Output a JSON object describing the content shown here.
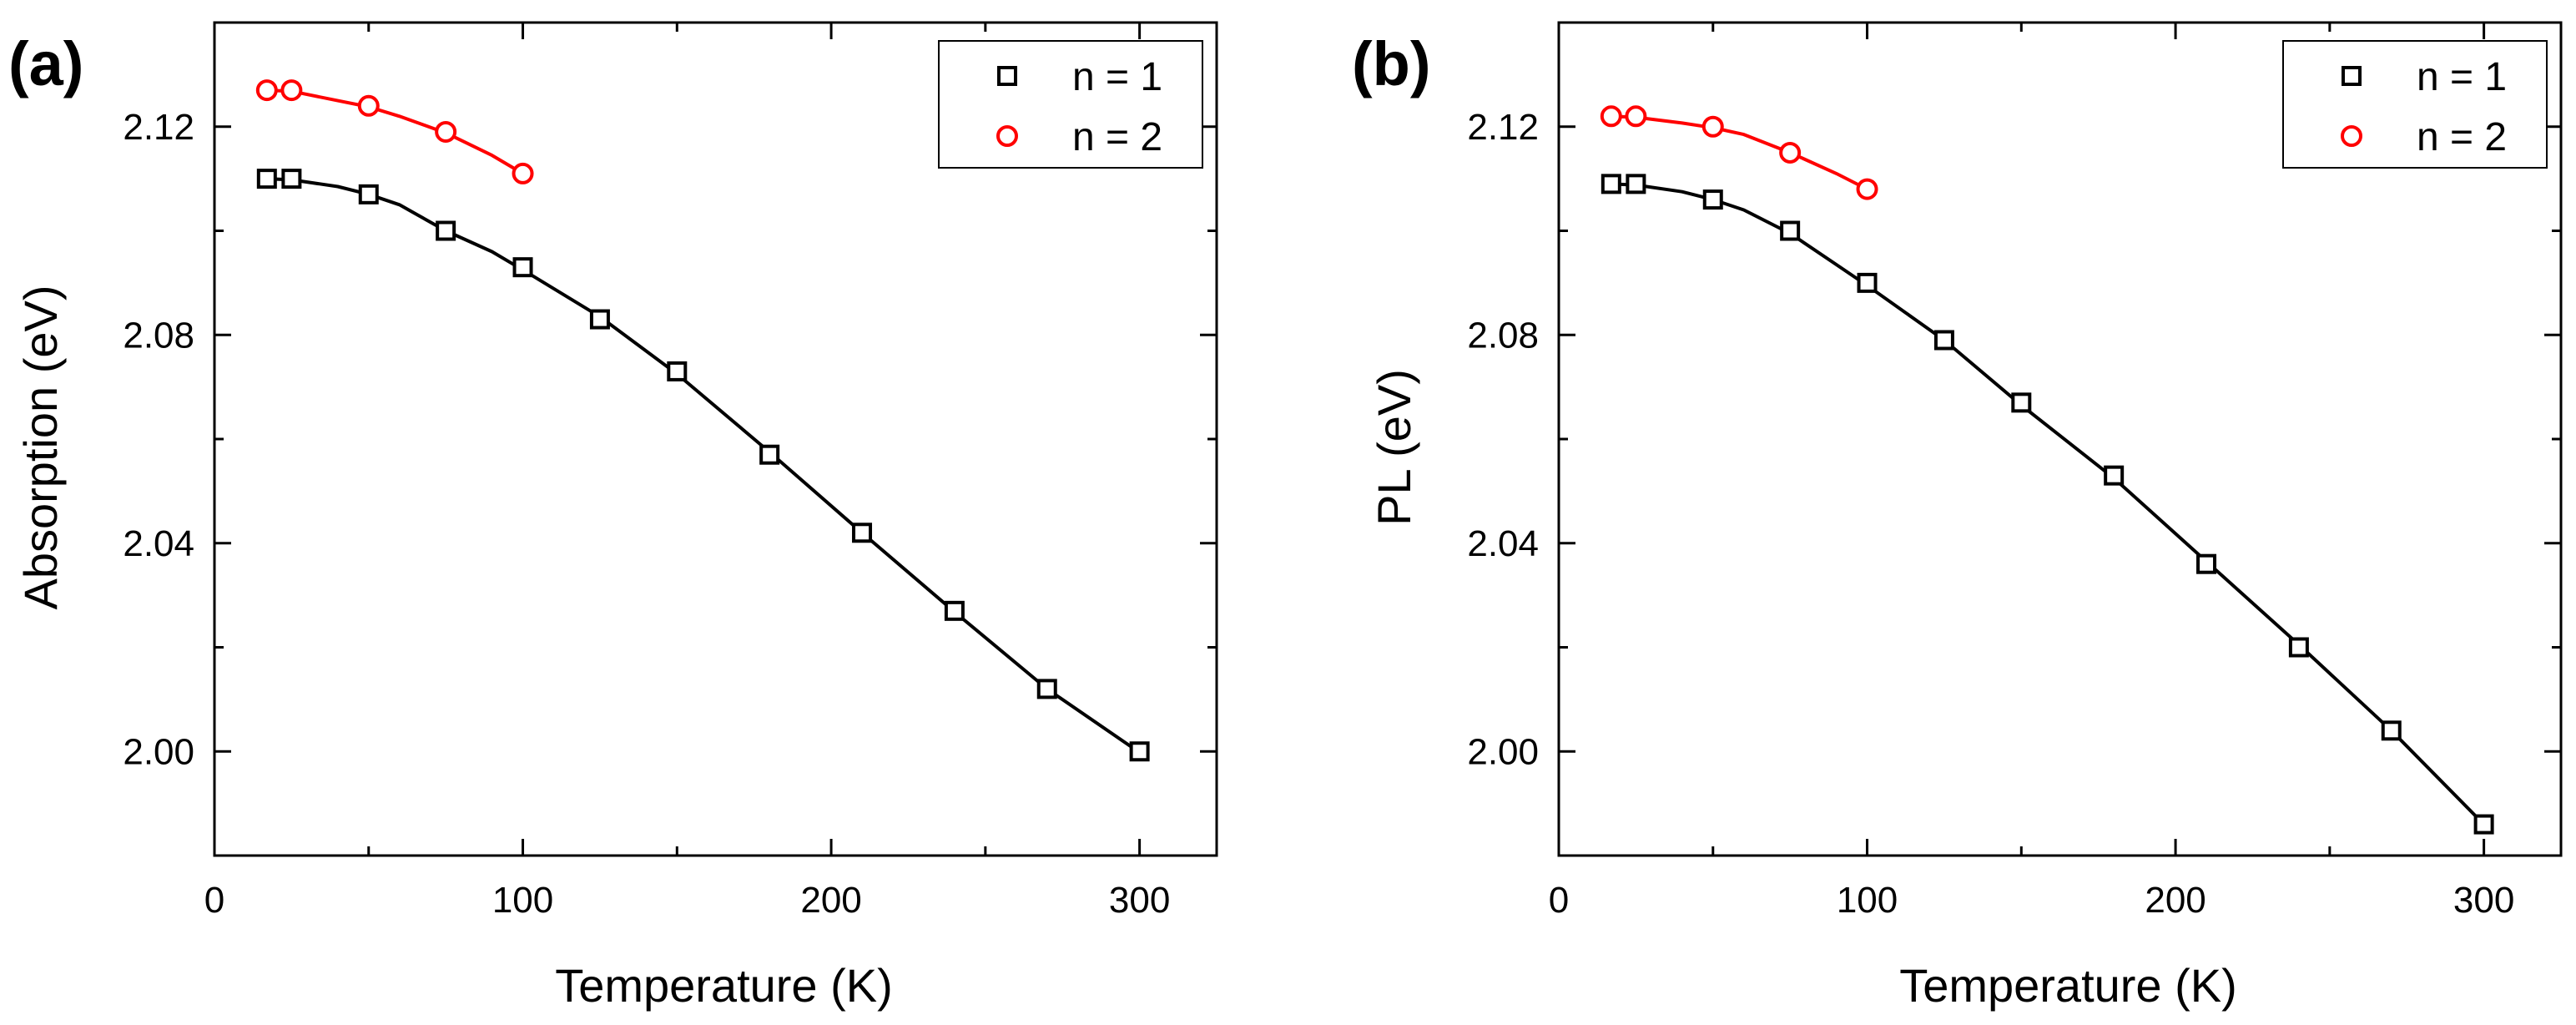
{
  "chart_data": [
    {
      "type": "scatter",
      "panel_label": "(a)",
      "title": "",
      "xlabel": "Temperature (K)",
      "ylabel": "Absorption (eV)",
      "xlim": [
        0,
        325
      ],
      "ylim": [
        1.98,
        2.14
      ],
      "xticks": [
        0,
        100,
        200,
        300
      ],
      "xtick_labels": [
        "0",
        "100",
        "200",
        "300"
      ],
      "yticks": [
        2.0,
        2.04,
        2.08,
        2.12
      ],
      "ytick_labels": [
        "2.00",
        "2.04",
        "2.08",
        "2.12"
      ],
      "grid": false,
      "legend_position": "top-right",
      "series": [
        {
          "name": "n = 1",
          "marker": "square",
          "color": "#000000",
          "x": [
            17,
            25,
            50,
            75,
            100,
            125,
            150,
            180,
            210,
            240,
            270,
            300
          ],
          "y": [
            2.11,
            2.11,
            2.107,
            2.1,
            2.093,
            2.083,
            2.073,
            2.057,
            2.042,
            2.027,
            2.012,
            2.0
          ],
          "fit": {
            "x": [
              17,
              25,
              40,
              50,
              60,
              75,
              90,
              100,
              125,
              150,
              180,
              210,
              240,
              270,
              300
            ],
            "y": [
              2.11,
              2.1098,
              2.1085,
              2.107,
              2.105,
              2.1,
              2.096,
              2.0925,
              2.0835,
              2.0725,
              2.0575,
              2.042,
              2.0268,
              2.012,
              1.9998
            ]
          }
        },
        {
          "name": "n = 2",
          "marker": "circle",
          "color": "#ff0000",
          "x": [
            17,
            25,
            50,
            75,
            100
          ],
          "y": [
            2.127,
            2.127,
            2.124,
            2.119,
            2.111
          ],
          "fit": {
            "x": [
              17,
              25,
              40,
              50,
              60,
              75,
              90,
              100
            ],
            "y": [
              2.127,
              2.1268,
              2.125,
              2.1238,
              2.122,
              2.1188,
              2.1145,
              2.111
            ]
          }
        }
      ]
    },
    {
      "type": "scatter",
      "panel_label": "(b)",
      "title": "",
      "xlabel": "Temperature (K)",
      "ylabel": "PL (eV)",
      "xlim": [
        0,
        325
      ],
      "ylim": [
        1.98,
        2.14
      ],
      "xticks": [
        0,
        100,
        200,
        300
      ],
      "xtick_labels": [
        "0",
        "100",
        "200",
        "300"
      ],
      "yticks": [
        2.0,
        2.04,
        2.08,
        2.12
      ],
      "ytick_labels": [
        "2.00",
        "2.04",
        "2.08",
        "2.12"
      ],
      "grid": false,
      "legend_position": "top-right",
      "series": [
        {
          "name": "n = 1",
          "marker": "square",
          "color": "#000000",
          "x": [
            17,
            25,
            50,
            75,
            100,
            125,
            150,
            180,
            210,
            240,
            270,
            300
          ],
          "y": [
            2.109,
            2.109,
            2.106,
            2.1,
            2.09,
            2.079,
            2.067,
            2.053,
            2.036,
            2.02,
            2.004,
            1.986
          ],
          "fit": {
            "x": [
              17,
              25,
              40,
              50,
              60,
              75,
              90,
              100,
              125,
              150,
              180,
              210,
              240,
              270,
              300
            ],
            "y": [
              2.109,
              2.1088,
              2.1075,
              2.106,
              2.104,
              2.0995,
              2.0935,
              2.0895,
              2.079,
              2.0665,
              2.0525,
              2.0365,
              2.0205,
              2.004,
              1.986
            ]
          }
        },
        {
          "name": "n = 2",
          "marker": "circle",
          "color": "#ff0000",
          "x": [
            17,
            25,
            50,
            75,
            100
          ],
          "y": [
            2.122,
            2.122,
            2.12,
            2.115,
            2.108
          ],
          "fit": {
            "x": [
              17,
              25,
              40,
              50,
              60,
              75,
              90,
              100
            ],
            "y": [
              2.122,
              2.1218,
              2.1207,
              2.1198,
              2.1185,
              2.115,
              2.111,
              2.108
            ]
          }
        }
      ]
    }
  ]
}
